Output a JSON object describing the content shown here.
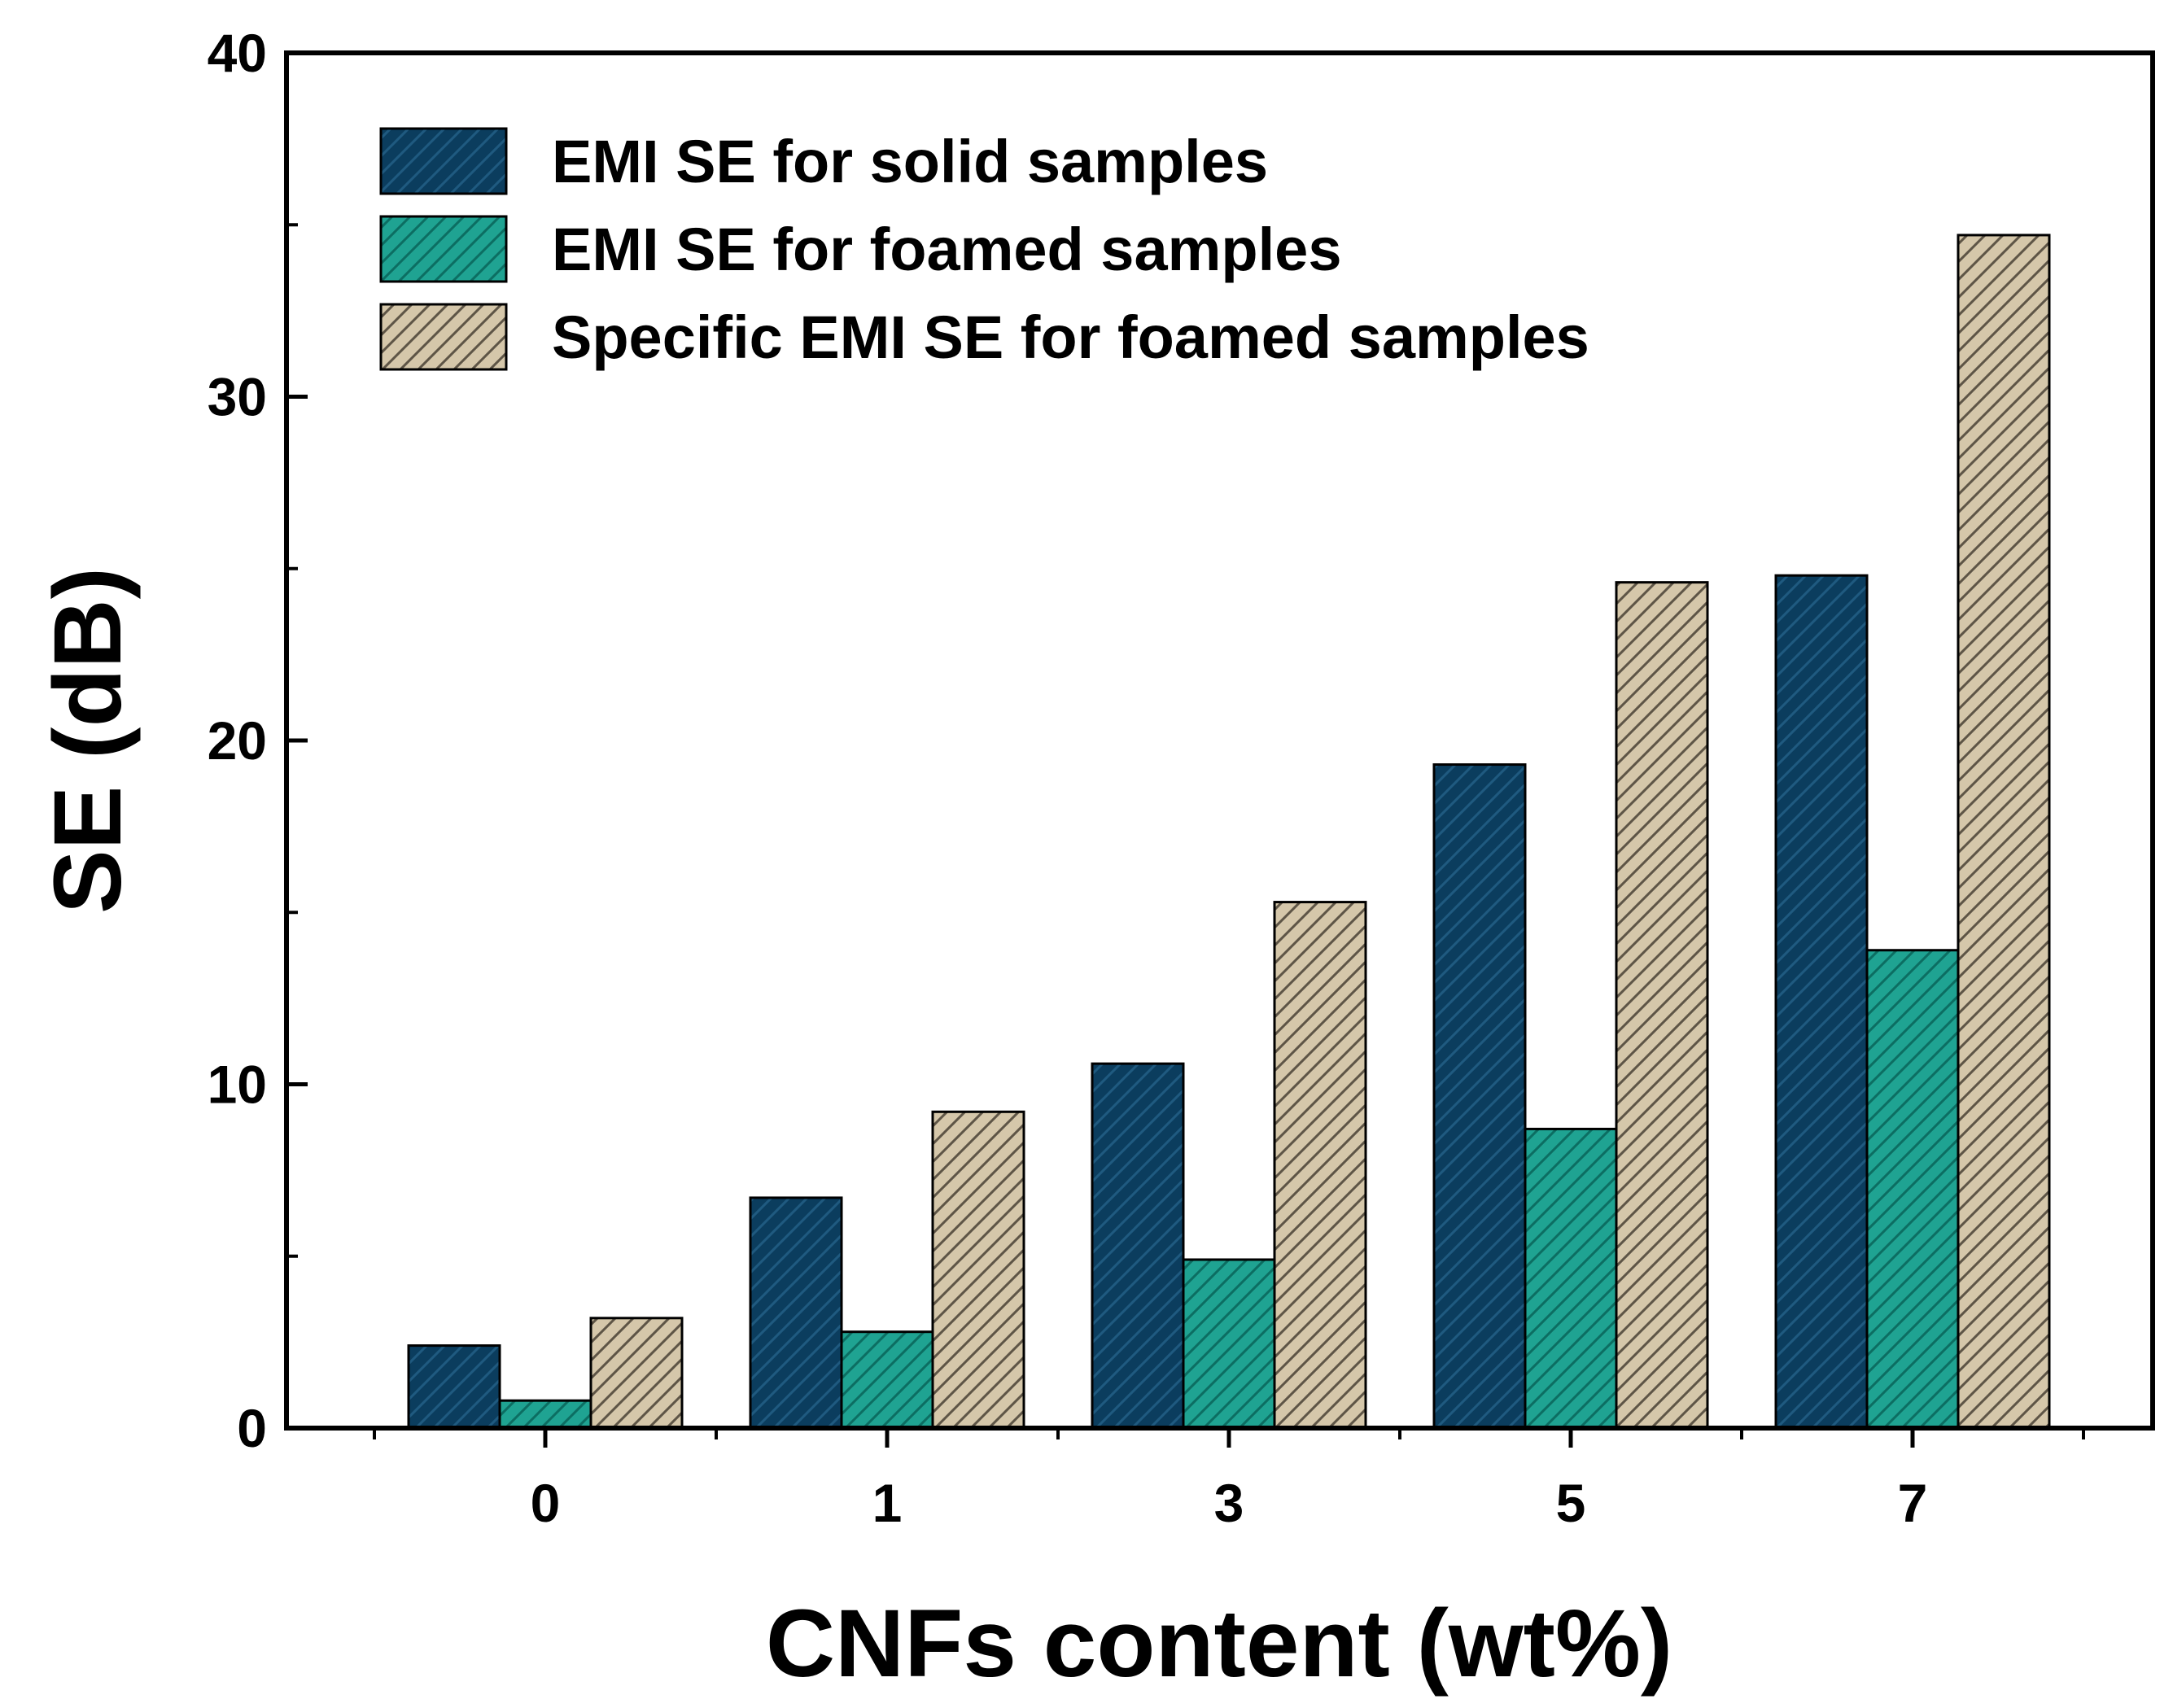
{
  "chart_data": {
    "type": "bar",
    "title": "",
    "xlabel": "CNFs content (wt%)",
    "ylabel": "SE (dB)",
    "categories": [
      "0",
      "1",
      "3",
      "5",
      "7"
    ],
    "ylim": [
      0,
      40
    ],
    "yticks": [
      "0",
      "10",
      "20",
      "30",
      "40"
    ],
    "grid": false,
    "legend_position": "top-left",
    "series": [
      {
        "name": "EMI SE for solid samples",
        "values": [
          2.4,
          6.7,
          10.6,
          19.3,
          24.8
        ],
        "color": "#0b3d5e",
        "hatch": "#1f5a80"
      },
      {
        "name": "EMI SE for foamed samples",
        "values": [
          0.8,
          2.8,
          4.9,
          8.7,
          13.9
        ],
        "color": "#1fa392",
        "hatch": "#0c6e62"
      },
      {
        "name": "Specific EMI SE for foamed samples",
        "values": [
          3.2,
          9.2,
          15.3,
          24.6,
          34.7
        ],
        "color": "#d5c7aa",
        "hatch": "#5e5546"
      }
    ]
  }
}
